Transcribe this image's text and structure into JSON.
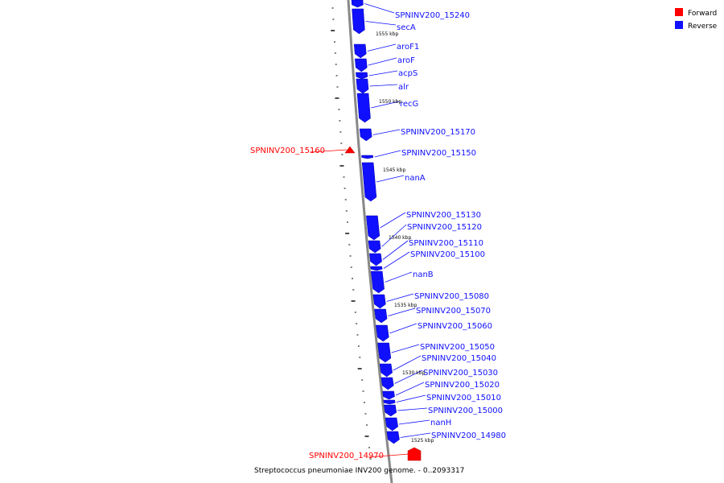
{
  "caption": "Streptococcus pneumoniae INV200 genome. - 0..2093317",
  "legend": [
    {
      "label": "Forward",
      "color": "#ff0000"
    },
    {
      "label": "Reverse",
      "color": "#1010ff"
    }
  ],
  "colors": {
    "forward": "#ff0000",
    "reverse": "#1010ff",
    "backbone": "#888888"
  },
  "ticks": [
    "1555 kbp",
    "1550 kbp",
    "1545 kbp",
    "1540 kbp",
    "1535 kbp",
    "1530 kbp",
    "1525 kbp"
  ],
  "genes": [
    {
      "name": "SPNINV200_15240",
      "strand": "reverse"
    },
    {
      "name": "secA",
      "strand": "reverse"
    },
    {
      "name": "aroF1",
      "strand": "reverse"
    },
    {
      "name": "aroF",
      "strand": "reverse"
    },
    {
      "name": "acpS",
      "strand": "reverse"
    },
    {
      "name": "alr",
      "strand": "reverse"
    },
    {
      "name": "recG",
      "strand": "reverse"
    },
    {
      "name": "SPNINV200_15170",
      "strand": "reverse"
    },
    {
      "name": "SPNINV200_15160",
      "strand": "forward"
    },
    {
      "name": "SPNINV200_15150",
      "strand": "reverse"
    },
    {
      "name": "nanA",
      "strand": "reverse"
    },
    {
      "name": "SPNINV200_15130",
      "strand": "reverse"
    },
    {
      "name": "SPNINV200_15120",
      "strand": "reverse"
    },
    {
      "name": "SPNINV200_15110",
      "strand": "reverse"
    },
    {
      "name": "SPNINV200_15100",
      "strand": "reverse"
    },
    {
      "name": "nanB",
      "strand": "reverse"
    },
    {
      "name": "SPNINV200_15080",
      "strand": "reverse"
    },
    {
      "name": "SPNINV200_15070",
      "strand": "reverse"
    },
    {
      "name": "SPNINV200_15060",
      "strand": "reverse"
    },
    {
      "name": "SPNINV200_15050",
      "strand": "reverse"
    },
    {
      "name": "SPNINV200_15040",
      "strand": "reverse"
    },
    {
      "name": "SPNINV200_15030",
      "strand": "reverse"
    },
    {
      "name": "SPNINV200_15020",
      "strand": "reverse"
    },
    {
      "name": "SPNINV200_15010",
      "strand": "reverse"
    },
    {
      "name": "SPNINV200_15000",
      "strand": "reverse"
    },
    {
      "name": "nanH",
      "strand": "reverse"
    },
    {
      "name": "SPNINV200_14980",
      "strand": "reverse"
    },
    {
      "name": "SPNINV200_14970",
      "strand": "forward"
    }
  ]
}
